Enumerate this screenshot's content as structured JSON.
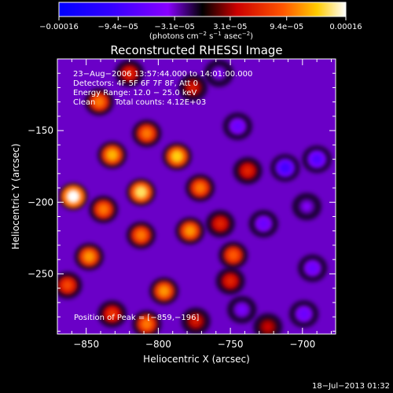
{
  "chart_data": {
    "type": "heatmap",
    "title": "Reconstructed RHESSI Image",
    "xlabel": "Heliocentric X (arcsec)",
    "ylabel": "Heliocentric Y (arcsec)",
    "xlim": [
      -870,
      -677
    ],
    "ylim": [
      -292,
      -100
    ],
    "xticks": [
      -850,
      -800,
      -750,
      -700
    ],
    "yticks": [
      -250,
      -200,
      -150
    ],
    "xtick_labels": [
      "−850",
      "−800",
      "−750",
      "−700"
    ],
    "ytick_labels": [
      "−250",
      "−200",
      "−150"
    ],
    "colorbar": {
      "ticks": [
        -0.00016,
        -9.4e-05,
        -3.1e-05,
        3.1e-05,
        9.4e-05,
        0.00016
      ],
      "tick_labels": [
        "−0.00016",
        "−9.4e−05",
        "−3.1e−05",
        "3.1e−05",
        "9.4e−05",
        "0.00016"
      ],
      "unit_main": "(photons cm",
      "unit_e1": "−2",
      "unit_mid": " s",
      "unit_e2": "−1",
      "unit_mid2": " asec",
      "unit_e3": "−2",
      "unit_end": ")",
      "range": [
        -0.00016,
        0.00016
      ]
    },
    "annotations": {
      "line1": "23−Aug−2006 13:57:44.000 to 14:01:00.000",
      "line2": "Detectors: 4F 5F 6F 7F 8F, Att 0",
      "line3": "Energy Range: 12.0 − 25.0 keV",
      "line4a": "Clean",
      "line4b": "Total counts: 4.12E+03",
      "peak": "Position of Peak = [−859,−196]"
    },
    "peak_position": [
      -859,
      -196
    ],
    "sources": [
      {
        "x": -859,
        "y": -196,
        "value": 0.00016
      },
      {
        "x": -832,
        "y": -167,
        "value": 0.00012
      },
      {
        "x": -841,
        "y": -130,
        "value": 0.0001
      },
      {
        "x": -808,
        "y": -152,
        "value": 0.0001
      },
      {
        "x": -787,
        "y": -168,
        "value": 0.00013
      },
      {
        "x": -812,
        "y": -193,
        "value": 0.00014
      },
      {
        "x": -838,
        "y": -205,
        "value": 0.0001
      },
      {
        "x": -771,
        "y": -190,
        "value": 0.0001
      },
      {
        "x": -778,
        "y": -220,
        "value": 0.00011
      },
      {
        "x": -812,
        "y": -223,
        "value": 0.0001
      },
      {
        "x": -848,
        "y": -238,
        "value": 0.00011
      },
      {
        "x": -796,
        "y": -262,
        "value": 0.00011
      },
      {
        "x": -808,
        "y": -285,
        "value": 0.0001
      },
      {
        "x": -863,
        "y": -258,
        "value": 8e-05
      },
      {
        "x": -832,
        "y": -278,
        "value": 7e-05
      },
      {
        "x": -748,
        "y": -237,
        "value": 9e-05
      },
      {
        "x": -757,
        "y": -215,
        "value": 6e-05
      },
      {
        "x": -738,
        "y": -178,
        "value": 6e-05
      },
      {
        "x": -750,
        "y": -255,
        "value": 6e-05
      },
      {
        "x": -774,
        "y": -283,
        "value": 5e-05
      },
      {
        "x": -724,
        "y": -287,
        "value": 4e-05
      },
      {
        "x": -820,
        "y": -110,
        "value": 6e-05
      },
      {
        "x": -776,
        "y": -120,
        "value": 5e-05
      },
      {
        "x": -712,
        "y": -176,
        "value": -9e-05
      },
      {
        "x": -690,
        "y": -170,
        "value": -8e-05
      },
      {
        "x": -727,
        "y": -215,
        "value": -6e-05
      },
      {
        "x": -693,
        "y": -246,
        "value": -6e-05
      },
      {
        "x": -742,
        "y": -275,
        "value": -5e-05
      },
      {
        "x": -699,
        "y": -278,
        "value": -6e-05
      },
      {
        "x": -745,
        "y": -147,
        "value": -6e-05
      },
      {
        "x": -758,
        "y": -110,
        "value": -4e-05
      },
      {
        "x": -697,
        "y": -203,
        "value": -4e-05
      }
    ],
    "background_value": -3e-05
  },
  "footer": {
    "timestamp": "18−Jul−2013 01:32"
  }
}
